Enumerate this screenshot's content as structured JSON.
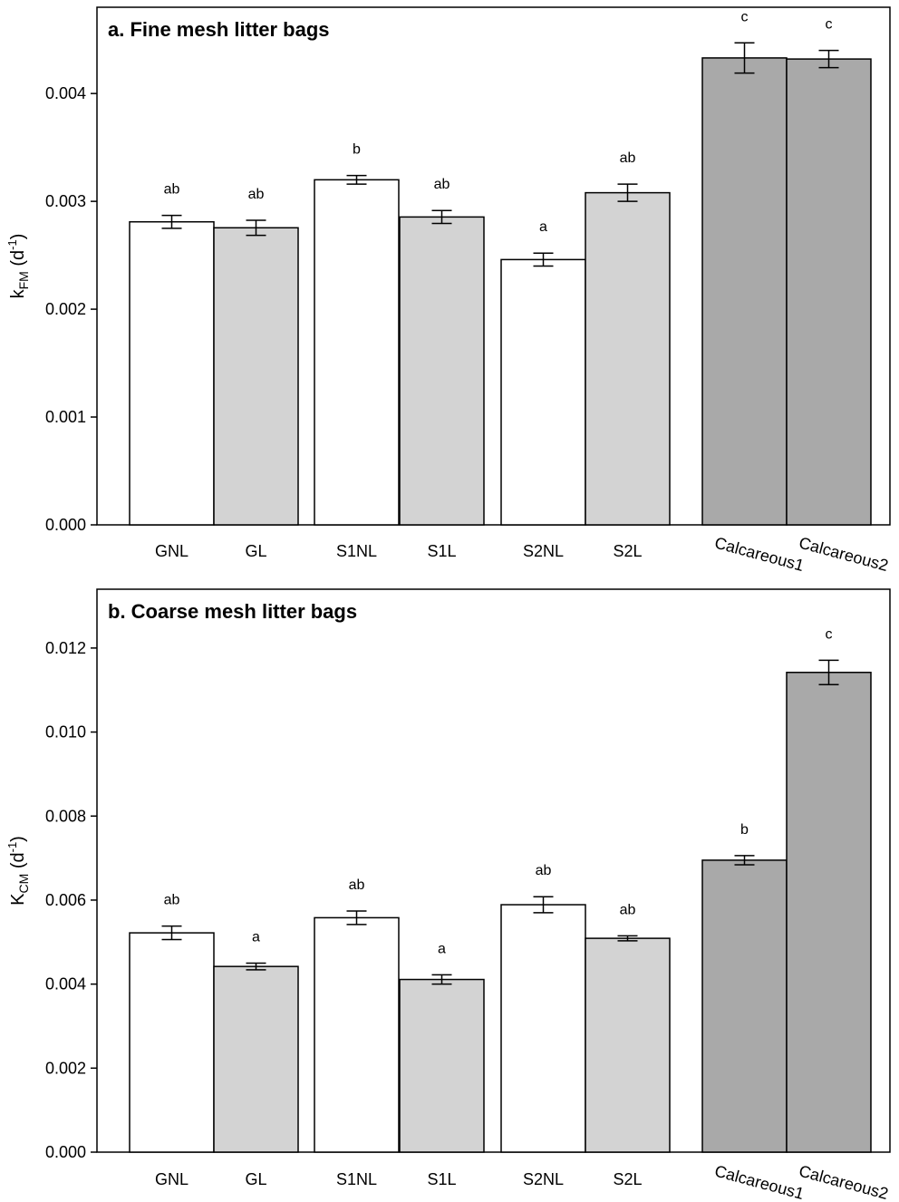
{
  "chart_data": [
    {
      "type": "bar",
      "panel": "a.",
      "title": "Fine mesh litter bags",
      "ylabel": {
        "main": "k",
        "sub": "FM",
        "unit_open": " (d",
        "unit_sup": "-1",
        "unit_close": ")"
      },
      "ylim": [
        0,
        0.0048
      ],
      "yticks": [
        "0.000",
        "0.001",
        "0.002",
        "0.003",
        "0.004"
      ],
      "ytick_values": [
        0,
        0.001,
        0.002,
        0.003,
        0.004
      ],
      "grid": false,
      "categories": [
        "GNL",
        "GL",
        "S1NL",
        "S1L",
        "S2NL",
        "S2L",
        "Calcareous1",
        "Calcareous2"
      ],
      "values": [
        0.00281,
        0.002755,
        0.0032,
        0.002855,
        0.00246,
        0.00308,
        0.00433,
        0.00432
      ],
      "errors": [
        6e-05,
        7e-05,
        4e-05,
        6e-05,
        6e-05,
        8e-05,
        0.00014,
        8e-05
      ],
      "significance": [
        "ab",
        "ab",
        "b",
        "ab",
        "a",
        "ab",
        "c",
        "c"
      ],
      "fill_colors": [
        "#ffffff",
        "#d3d3d3",
        "#ffffff",
        "#d3d3d3",
        "#ffffff",
        "#d3d3d3",
        "#a9a9a9",
        "#a9a9a9"
      ]
    },
    {
      "type": "bar",
      "panel": "b.",
      "title": "Coarse mesh litter bags",
      "ylabel": {
        "main": "K",
        "sub": "CM",
        "unit_open": " (d",
        "unit_sup": "-1",
        "unit_close": ")"
      },
      "ylim": [
        0,
        0.0134
      ],
      "yticks": [
        "0.000",
        "0.002",
        "0.004",
        "0.006",
        "0.008",
        "0.010",
        "0.012"
      ],
      "ytick_values": [
        0,
        0.002,
        0.004,
        0.006,
        0.008,
        0.01,
        0.012
      ],
      "grid": false,
      "categories": [
        "GNL",
        "GL",
        "S1NL",
        "S1L",
        "S2NL",
        "S2L",
        "Calcareous1",
        "Calcareous2"
      ],
      "values": [
        0.00522,
        0.00442,
        0.00558,
        0.00411,
        0.00589,
        0.00509,
        0.00695,
        0.01142
      ],
      "errors": [
        0.00016,
        8e-05,
        0.00016,
        0.00011,
        0.00019,
        6e-05,
        0.00011,
        0.00029
      ],
      "significance": [
        "ab",
        "a",
        "ab",
        "a",
        "ab",
        "ab",
        "b",
        "c"
      ],
      "fill_colors": [
        "#ffffff",
        "#d3d3d3",
        "#ffffff",
        "#d3d3d3",
        "#ffffff",
        "#d3d3d3",
        "#a9a9a9",
        "#a9a9a9"
      ]
    }
  ]
}
